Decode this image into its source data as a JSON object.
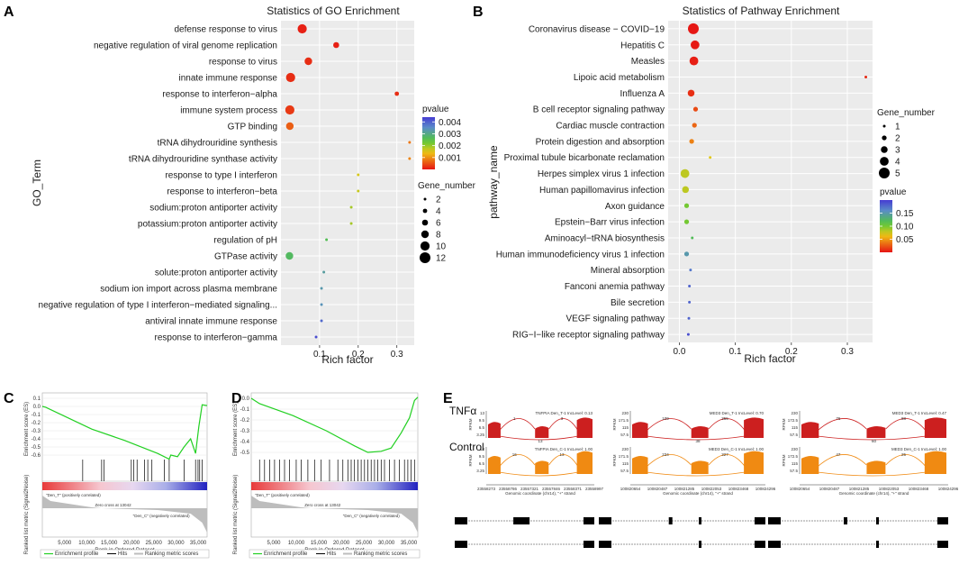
{
  "panels": {
    "A": "A",
    "B": "B",
    "C": "C",
    "D": "D",
    "E": "E"
  },
  "chart_data": [
    {
      "id": "A",
      "type": "scatter",
      "title": "Statistics of GO Enrichment",
      "xlabel": "Rich factor",
      "ylabel": "GO_Term",
      "xlim": [
        0.0,
        0.345
      ],
      "xticks": [
        0.1,
        0.2,
        0.3
      ],
      "xtick_labels": [
        "0.1",
        "0.2",
        "0.3"
      ],
      "categories": [
        "defense response to virus",
        "negative regulation of viral genome replication",
        "response to virus",
        "innate immune response",
        "response to interferon−alpha",
        "immune system process",
        "GTP binding",
        "tRNA dihydrouridine synthesis",
        "tRNA dihydrouridine synthase activity",
        "response to type I interferon",
        "response to interferon−beta",
        "sodium:proton antiporter activity",
        "potassium:proton antiporter activity",
        "regulation of pH",
        "GTPase activity",
        "solute:proton antiporter activity",
        "sodium ion import across plasma membrane",
        "negative regulation of type I interferon−mediated signaling...",
        "antiviral innate immune response",
        "response to interferon−gamma"
      ],
      "x": [
        0.055,
        0.143,
        0.071,
        0.025,
        0.3,
        0.023,
        0.023,
        0.333,
        0.333,
        0.2,
        0.2,
        0.182,
        0.182,
        0.118,
        0.022,
        0.111,
        0.105,
        0.105,
        0.105,
        0.091
      ],
      "size": [
        10,
        6,
        8,
        10,
        4,
        10,
        8,
        2,
        2,
        2,
        2,
        2,
        2,
        2,
        8,
        2,
        2,
        2,
        2,
        2
      ],
      "pvalue": [
        0.0001,
        0.0001,
        0.0002,
        0.0002,
        0.0002,
        0.0003,
        0.0006,
        0.0008,
        0.0009,
        0.0016,
        0.0017,
        0.0019,
        0.0019,
        0.0026,
        0.0027,
        0.0032,
        0.0033,
        0.0034,
        0.0039,
        0.0042
      ],
      "legend_color": {
        "title": "pvalue",
        "range": [
          0,
          0.0044
        ],
        "ticks": [
          0.004,
          0.003,
          0.002,
          0.001
        ],
        "tick_labels": [
          "0.004",
          "0.003",
          "0.002",
          "0.001"
        ]
      },
      "legend_size": {
        "title": "Gene_number",
        "values": [
          2,
          4,
          6,
          8,
          10,
          12
        ],
        "labels": [
          "2",
          "4",
          "6",
          "8",
          "10",
          "12"
        ]
      }
    },
    {
      "id": "B",
      "type": "scatter",
      "title": "Statistics of Pathway Enrichment",
      "xlabel": "Rich factor",
      "ylabel": "pathway_name",
      "xlim": [
        -0.02,
        0.345
      ],
      "xticks": [
        0.0,
        0.1,
        0.2,
        0.3
      ],
      "xtick_labels": [
        "0.0",
        "0.1",
        "0.2",
        "0.3"
      ],
      "categories": [
        "Coronavirus disease − COVID−19",
        "Hepatitis C",
        "Measles",
        "Lipoic acid metabolism",
        "Influenza A",
        "B cell receptor signaling pathway",
        "Cardiac muscle contraction",
        "Protein digestion and absorption",
        "Proximal tubule bicarbonate reclamation",
        "Herpes simplex virus 1 infection",
        "Human papillomavirus infection",
        "Axon guidance",
        "Epstein−Barr virus infection",
        "Aminoacyl−tRNA biosynthesis",
        "Human immunodeficiency virus 1 infection",
        "Mineral absorption",
        "Fanconi anemia pathway",
        "Bile secretion",
        "VEGF signaling pathway",
        "RIG−I−like receptor signaling pathway"
      ],
      "x": [
        0.025,
        0.028,
        0.026,
        0.333,
        0.021,
        0.029,
        0.027,
        0.022,
        0.055,
        0.01,
        0.011,
        0.013,
        0.013,
        0.023,
        0.013,
        0.02,
        0.018,
        0.018,
        0.017,
        0.016
      ],
      "size": [
        5,
        4,
        4,
        1,
        3,
        2,
        2,
        2,
        1,
        4,
        3,
        2,
        2,
        1,
        2,
        1,
        1,
        1,
        1,
        1
      ],
      "pvalue": [
        0.001,
        0.002,
        0.004,
        0.008,
        0.01,
        0.02,
        0.03,
        0.04,
        0.07,
        0.08,
        0.08,
        0.1,
        0.1,
        0.12,
        0.15,
        0.17,
        0.18,
        0.18,
        0.18,
        0.19
      ],
      "legend_color": {
        "title": "pvalue",
        "range": [
          0,
          0.2
        ],
        "ticks": [
          0.15,
          0.1,
          0.05
        ],
        "tick_labels": [
          "0.15",
          "0.10",
          "0.05"
        ]
      },
      "legend_size": {
        "title": "Gene_number",
        "values": [
          1,
          2,
          3,
          4,
          5
        ],
        "labels": [
          "1",
          "2",
          "3",
          "4",
          "5"
        ]
      }
    }
  ],
  "gsea": [
    {
      "id": "C",
      "ylabel_top": "Enrichment score (ES)",
      "ylabel_bottom": "Ranked list metric (Signal2Noise)",
      "xlabel": "Rank in Ordered Dataset",
      "yticks": [
        "0.1",
        "0.0",
        "-0.1",
        "-0.2",
        "-0.3",
        "-0.4",
        "-0.5",
        "-0.6"
      ],
      "xticks": [
        "5,000",
        "10,000",
        "15,000",
        "20,000",
        "25,000",
        "30,000",
        "35,000"
      ],
      "es_curve": [
        [
          0,
          0.0
        ],
        [
          0.02,
          -0.01
        ],
        [
          0.3,
          -0.28
        ],
        [
          0.5,
          -0.42
        ],
        [
          0.7,
          -0.58
        ],
        [
          0.77,
          -0.65
        ],
        [
          0.78,
          -0.6
        ],
        [
          0.82,
          -0.62
        ],
        [
          0.86,
          -0.5
        ],
        [
          0.9,
          -0.4
        ],
        [
          0.93,
          -0.58
        ],
        [
          0.95,
          -0.25
        ],
        [
          0.97,
          0.02
        ],
        [
          1.0,
          0.01
        ]
      ],
      "hits": [
        0.245,
        0.36,
        0.375,
        0.54,
        0.555,
        0.575,
        0.62,
        0.64,
        0.665,
        0.74,
        0.77,
        0.86,
        0.93,
        0.945,
        0.955,
        0.97
      ],
      "pos_label": "\"Den_T\" (positively correlated)",
      "neg_label": "\"Den_C\" (negatively correlated)",
      "zero_cross": "Zero cross at 13042",
      "legend": [
        "Enrichment profile",
        "Hits",
        "Ranking metric scores"
      ]
    },
    {
      "id": "D",
      "ylabel_top": "Enrichment score (ES)",
      "ylabel_bottom": "Ranked list metric (Signal2Noise)",
      "xlabel": "Rank in Ordered Dataset",
      "yticks": [
        "0.0",
        "-0.1",
        "-0.2",
        "-0.3",
        "-0.4",
        "-0.5"
      ],
      "xticks": [
        "5,000",
        "10,000",
        "15,000",
        "20,000",
        "25,000",
        "30,000",
        "35,000"
      ],
      "es_curve": [
        [
          0,
          0.0
        ],
        [
          0.05,
          -0.05
        ],
        [
          0.25,
          -0.16
        ],
        [
          0.45,
          -0.3
        ],
        [
          0.62,
          -0.44
        ],
        [
          0.7,
          -0.5
        ],
        [
          0.78,
          -0.49
        ],
        [
          0.84,
          -0.46
        ],
        [
          0.9,
          -0.32
        ],
        [
          0.95,
          -0.18
        ],
        [
          0.98,
          -0.02
        ],
        [
          1.0,
          0.01
        ]
      ],
      "hits": [
        0.05,
        0.08,
        0.11,
        0.14,
        0.17,
        0.2,
        0.23,
        0.27,
        0.3,
        0.34,
        0.38,
        0.42,
        0.47,
        0.52,
        0.55,
        0.58,
        0.6,
        0.62,
        0.64,
        0.66,
        0.68,
        0.7,
        0.72,
        0.74,
        0.76,
        0.78,
        0.8,
        0.83,
        0.86,
        0.89,
        0.92,
        0.94,
        0.96,
        0.98
      ],
      "pos_label": "\"Den_T\" (positively correlated)",
      "neg_label": "\"Den_C\" (negatively correlated)",
      "zero_cross": "Zero cross at 13042",
      "legend": [
        "Enrichment profile",
        "Hits",
        "Ranking metric scores"
      ]
    }
  ],
  "sashimi": {
    "group_treated": "TNFα",
    "group_control": "Control",
    "ylabel": "RPKM",
    "panels": [
      {
        "gene_label_t": "TNFPIA Den_T-1 IncLevel: 0.13",
        "gene_label_c": "TNFPIA Den_C-1 IncLevel: 1.00",
        "yticks_t": [
          "13",
          "9.5",
          "6.5",
          "3.25"
        ],
        "yticks_c": [
          "13",
          "9.5",
          "6.5",
          "3.25"
        ],
        "junctions_t": [
          "1",
          "3",
          "13"
        ],
        "junctions_c": [
          "16",
          "13"
        ],
        "xticks": [
          "23558273",
          "23558786",
          "23557321",
          "23557846",
          "23558371",
          "23558997"
        ],
        "xlabel": "Genomic coordinate (chr14), \"+\" strand"
      },
      {
        "gene_label_t": "MED3 Den_T-1 IncLevel: 0.70",
        "gene_label_c": "MED3 Den_C-1 IncLevel: 1.00",
        "yticks_t": [
          "230",
          "171.5",
          "115",
          "57.5"
        ],
        "yticks_c": [
          "230",
          "171.5",
          "115",
          "57.5"
        ],
        "junctions_t": [
          "109",
          "355",
          "38"
        ],
        "junctions_c": [
          "234",
          "327"
        ],
        "xticks": [
          "100820654",
          "100820487",
          "100821285",
          "100822053",
          "100823468",
          "100824296"
        ],
        "xlabel": "Genomic coordinate (chr14), \"+\" strand"
      },
      {
        "gene_label_t": "MED3 Den_T-1 IncLevel: 0.47",
        "gene_label_c": "MED3 Den_C-1 IncLevel: 1.00",
        "yticks_t": [
          "230",
          "172.5",
          "115",
          "57.5"
        ],
        "yticks_c": [
          "230",
          "172.5",
          "115",
          "57.5"
        ],
        "junctions_t": [
          "76",
          "88",
          "60"
        ],
        "junctions_c": [
          "47",
          "25"
        ],
        "xticks": [
          "100820654",
          "100820487",
          "100821285",
          "100822053",
          "100823468",
          "100824296"
        ],
        "xlabel": "Genomic coordinate (chr14), \"+\" strand"
      }
    ]
  }
}
